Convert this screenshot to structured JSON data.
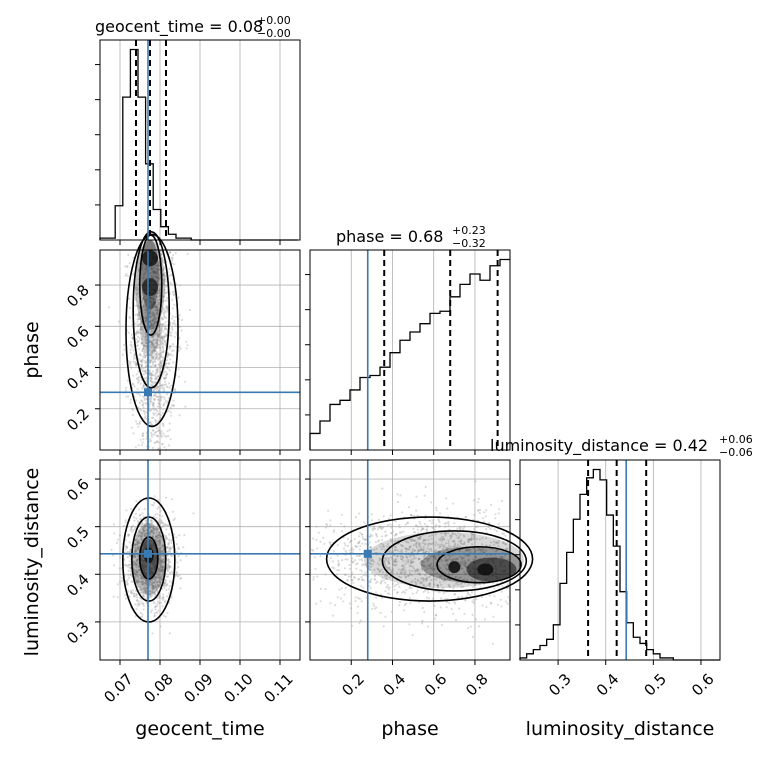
{
  "chart_data": {
    "type": "corner",
    "parameters": [
      {
        "name": "geocent_time",
        "label": "geocent_time",
        "lim": [
          0.065,
          0.115
        ],
        "ticks": [
          0.07,
          0.08,
          0.09,
          0.1,
          0.11
        ],
        "tick_labels": [
          "0.07",
          "0.08",
          "0.09",
          "0.10",
          "0.11"
        ],
        "truth": 0.077,
        "title": {
          "prefix": "geocent_time = 0.08",
          "plus": "+0.00",
          "minus": "−0.00"
        },
        "quantiles": [
          0.074,
          0.0775,
          0.0815
        ],
        "hist_edges_start": 0.065,
        "hist_bin": 0.0019,
        "hist_counts": [
          1,
          1,
          18,
          75,
          100,
          75,
          40,
          16,
          7,
          3,
          1,
          1,
          0,
          0,
          0,
          0,
          0,
          0,
          0,
          0,
          0,
          0,
          0,
          0,
          0,
          0
        ]
      },
      {
        "name": "phase",
        "label": "phase",
        "lim": [
          0.0,
          0.97
        ],
        "ticks": [
          0.2,
          0.4,
          0.6,
          0.8
        ],
        "tick_labels": [
          "0.2",
          "0.4",
          "0.6",
          "0.8"
        ],
        "truth": 0.28,
        "title": {
          "prefix": "phase = 0.68",
          "plus": "+0.23",
          "minus": "−0.32"
        },
        "quantiles": [
          0.36,
          0.68,
          0.91
        ],
        "hist_edges_start": 0.0,
        "hist_bin": 0.0485,
        "hist_counts": [
          8,
          14,
          22,
          24,
          29,
          35,
          36,
          40,
          47,
          53,
          57,
          61,
          66,
          67,
          74,
          80,
          85,
          82,
          89,
          92
        ]
      },
      {
        "name": "luminosity_distance",
        "label": "luminosity_distance",
        "lim": [
          0.22,
          0.64
        ],
        "ticks": [
          0.3,
          0.4,
          0.5,
          0.6
        ],
        "tick_labels": [
          "0.3",
          "0.4",
          "0.5",
          "0.6"
        ],
        "truth": 0.443,
        "title": {
          "prefix": "luminosity_distance = 0.42",
          "plus": "+0.06",
          "minus": "−0.06"
        },
        "quantiles": [
          0.363,
          0.423,
          0.485
        ],
        "hist_edges_start": 0.22,
        "hist_bin": 0.014,
        "hist_counts": [
          1,
          3,
          5,
          7,
          10,
          17,
          37,
          52,
          68,
          80,
          88,
          92,
          87,
          70,
          55,
          33,
          18,
          11,
          8,
          5,
          3,
          1,
          1,
          0,
          0,
          0,
          0,
          0,
          0,
          0
        ]
      }
    ],
    "truth_color": "#3a7ab3",
    "grid": true,
    "legend": "none"
  }
}
